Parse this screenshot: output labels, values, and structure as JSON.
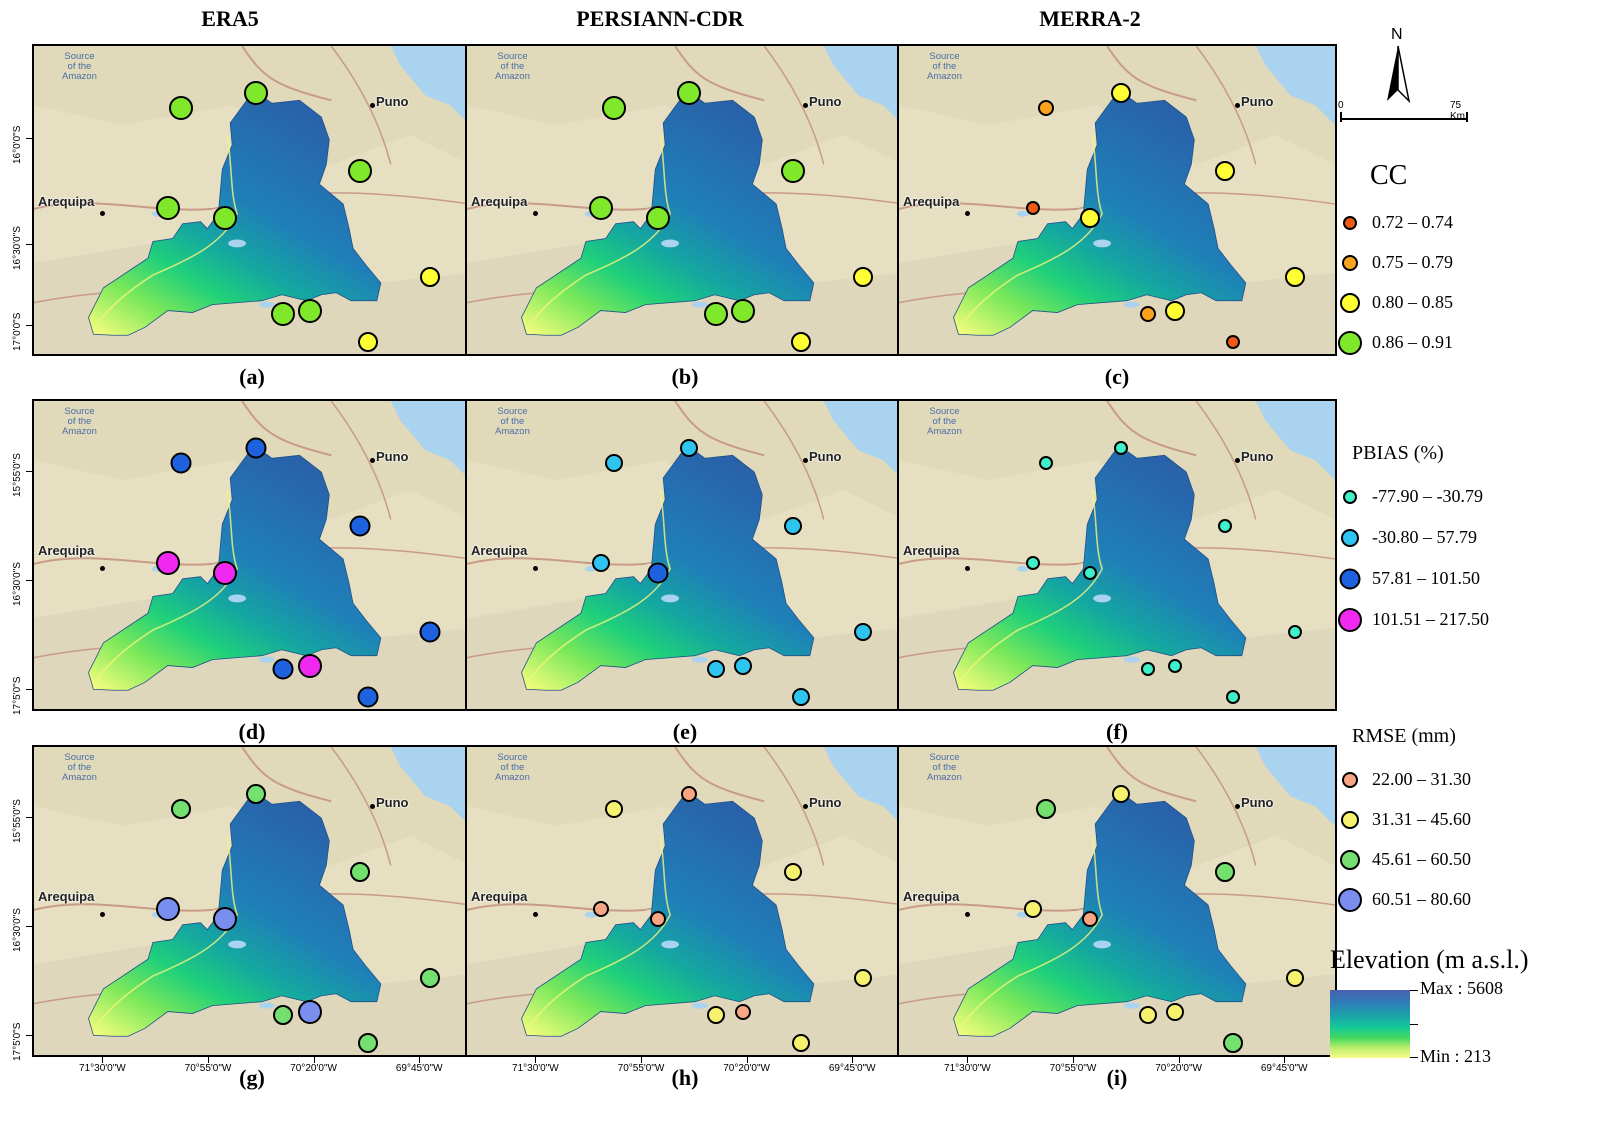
{
  "columns": [
    "ERA5",
    "PERSIANN-CDR",
    "MERRA-2"
  ],
  "panel_labels": [
    "(a)",
    "(b)",
    "(c)",
    "(d)",
    "(e)",
    "(f)",
    "(g)",
    "(h)",
    "(i)"
  ],
  "map_labels": {
    "city_west": "Arequipa",
    "city_east": "Puno",
    "amazon": [
      "Source",
      "of the",
      "Amazon"
    ]
  },
  "axes": {
    "row1_y": [
      "16°0'0\"S",
      "16°30'0\"S",
      "17°0'0\"S"
    ],
    "row2_y": [
      "15°55'0\"S",
      "16°30'0\"S",
      "17°5'0\"S"
    ],
    "row3_y": [
      "15°55'0\"S",
      "16°30'0\"S",
      "17°5'0\"S"
    ],
    "x": [
      "71°30'0\"W",
      "70°55'0\"W",
      "70°20'0\"W",
      "69°45'0\"W"
    ]
  },
  "north_arrow": "N",
  "scale_bar": {
    "start": "0",
    "end": "75 Km"
  },
  "legends": {
    "cc": {
      "title": "CC",
      "items": [
        {
          "label": "0.72 – 0.74",
          "color": "#f05a14"
        },
        {
          "label": "0.75 – 0.79",
          "color": "#f9a21d"
        },
        {
          "label": "0.80 – 0.85",
          "color": "#ffff33"
        },
        {
          "label": "0.86 – 0.91",
          "color": "#7fe82a"
        }
      ]
    },
    "pbias": {
      "title": "PBIAS (%)",
      "items": [
        {
          "label": "-77.90 – -30.79",
          "color": "#3ff0c8"
        },
        {
          "label": "-30.80 – 57.79",
          "color": "#2ec4f0"
        },
        {
          "label": "57.81 – 101.50",
          "color": "#1e62e0"
        },
        {
          "label": "101.51 – 217.50",
          "color": "#f028f0"
        }
      ]
    },
    "rmse": {
      "title": "RMSE (mm)",
      "items": [
        {
          "label": "22.00 – 31.30",
          "color": "#f7a582"
        },
        {
          "label": "31.31 – 45.60",
          "color": "#f6f26e"
        },
        {
          "label": "45.61 – 60.50",
          "color": "#74e070"
        },
        {
          "label": "60.51 – 80.60",
          "color": "#7a8ef0"
        }
      ]
    },
    "elevation": {
      "title": "Elevation (m a.s.l.)",
      "max": "Max : 5608",
      "min": "Min : 213"
    }
  },
  "stations_cc": {
    "ERA5": [
      3,
      3,
      3,
      3,
      3,
      2,
      3,
      3,
      2
    ],
    "PERSIANN-CDR": [
      3,
      3,
      3,
      3,
      3,
      2,
      3,
      3,
      2
    ],
    "MERRA-2": [
      1,
      2,
      2,
      0,
      2,
      2,
      1,
      2,
      0
    ]
  },
  "stations_pbias": {
    "ERA5": [
      2,
      2,
      2,
      3,
      3,
      2,
      2,
      3,
      2
    ],
    "PERSIANN-CDR": [
      1,
      1,
      1,
      1,
      2,
      1,
      1,
      1,
      1
    ],
    "MERRA-2": [
      0,
      0,
      0,
      0,
      0,
      0,
      0,
      0,
      0
    ]
  },
  "stations_rmse": {
    "ERA5": [
      2,
      2,
      2,
      3,
      3,
      2,
      2,
      3,
      2
    ],
    "PERSIANN-CDR": [
      1,
      0,
      1,
      0,
      0,
      1,
      1,
      0,
      1
    ],
    "MERRA-2": [
      2,
      1,
      2,
      1,
      0,
      1,
      1,
      1,
      2
    ]
  }
}
